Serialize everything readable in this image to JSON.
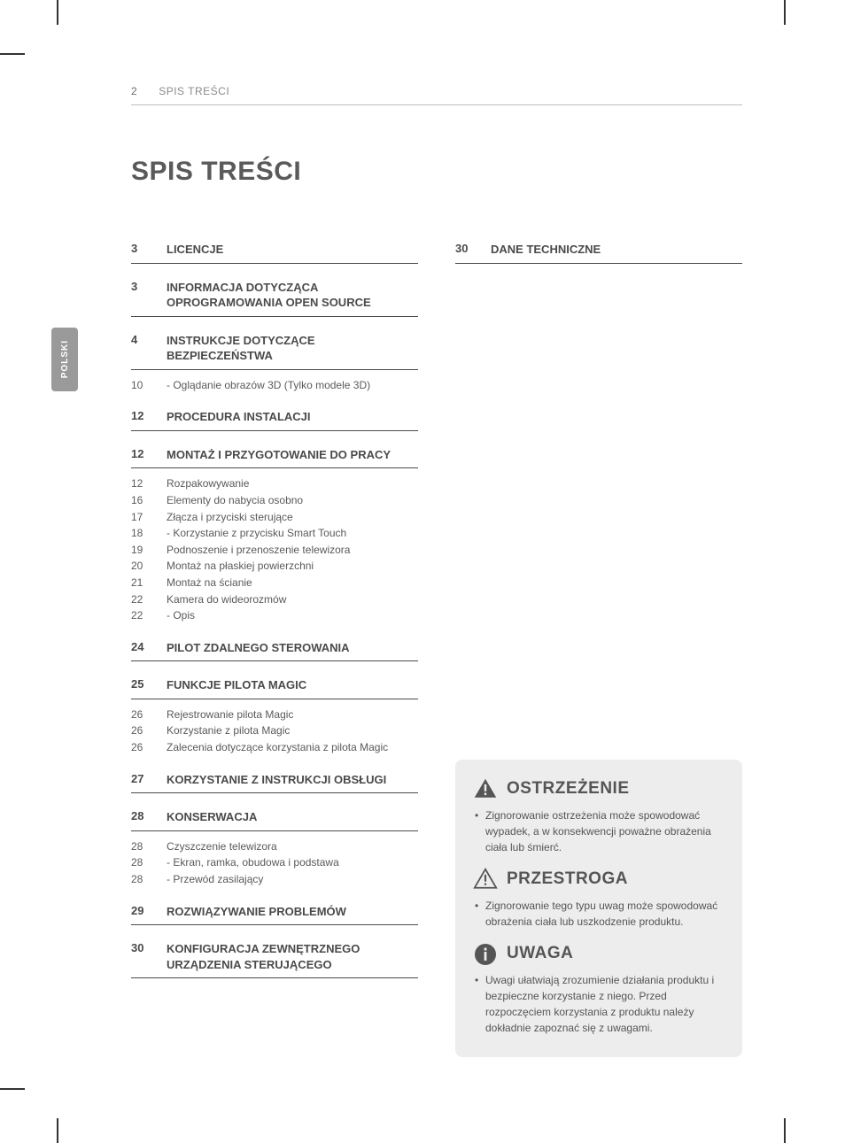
{
  "header": {
    "page_number": "2",
    "running_title": "SPIS TREŚCI"
  },
  "lang_tab": "POLSKI",
  "title": "SPIS TREŚCI",
  "left_col": [
    {
      "type": "section",
      "page": "3",
      "title": "LICENCJE"
    },
    {
      "type": "section",
      "page": "3",
      "title": "INFORMACJA DOTYCZĄCA OPROGRAMOWANIA OPEN SOURCE"
    },
    {
      "type": "section",
      "page": "4",
      "title": "INSTRUKCJE DOTYCZĄCE BEZPIECZEŃSTWA"
    },
    {
      "type": "item",
      "page": "10",
      "title": " - Oglądanie obrazów 3D (Tylko modele 3D)"
    },
    {
      "type": "section",
      "page": "12",
      "title": "PROCEDURA INSTALACJI"
    },
    {
      "type": "section",
      "page": "12",
      "title": "MONTAŻ I PRZYGOTOWANIE DO PRACY"
    },
    {
      "type": "item",
      "page": "12",
      "title": "Rozpakowywanie"
    },
    {
      "type": "item",
      "page": "16",
      "title": "Elementy do nabycia osobno"
    },
    {
      "type": "item",
      "page": "17",
      "title": "Złącza i przyciski sterujące"
    },
    {
      "type": "item",
      "page": "18",
      "title": " - Korzystanie z przycisku Smart Touch"
    },
    {
      "type": "item",
      "page": "19",
      "title": "Podnoszenie i przenoszenie telewizora"
    },
    {
      "type": "item",
      "page": "20",
      "title": "Montaż na płaskiej powierzchni"
    },
    {
      "type": "item",
      "page": "21",
      "title": "Montaż na ścianie"
    },
    {
      "type": "item",
      "page": "22",
      "title": "Kamera do wideorozmów"
    },
    {
      "type": "item",
      "page": "22",
      "title": " - Opis"
    },
    {
      "type": "section",
      "page": "24",
      "title": "PILOT ZDALNEGO STEROWANIA"
    },
    {
      "type": "section",
      "page": "25",
      "title": "FUNKCJE PILOTA MAGIC"
    },
    {
      "type": "item",
      "page": "26",
      "title": "Rejestrowanie pilota Magic"
    },
    {
      "type": "item",
      "page": "26",
      "title": "Korzystanie z pilota Magic"
    },
    {
      "type": "item",
      "page": "26",
      "title": "Zalecenia dotyczące korzystania z pilota Magic"
    },
    {
      "type": "section",
      "page": "27",
      "title": "KORZYSTANIE Z INSTRUKCJI OBSŁUGI"
    },
    {
      "type": "section",
      "page": "28",
      "title": "KONSERWACJA"
    },
    {
      "type": "item",
      "page": "28",
      "title": "Czyszczenie telewizora"
    },
    {
      "type": "item",
      "page": "28",
      "title": " - Ekran, ramka, obudowa i podstawa"
    },
    {
      "type": "item",
      "page": "28",
      "title": " - Przewód zasilający"
    },
    {
      "type": "section",
      "page": "29",
      "title": "ROZWIĄZYWANIE PROBLEMÓW"
    },
    {
      "type": "section",
      "page": "30",
      "title": "KONFIGURACJA ZEWNĘTRZNEGO URZĄDZENIA STERUJĄCEGO"
    }
  ],
  "right_col": [
    {
      "type": "section",
      "page": "30",
      "title": "DANE TECHNICZNE"
    }
  ],
  "notices": {
    "warning": {
      "title": "OSTRZEŻENIE",
      "body": "Zignorowanie ostrzeżenia może spowodować wypadek, a w konsekwencji poważne obrażenia ciała lub śmierć."
    },
    "caution": {
      "title": "PRZESTROGA",
      "body": "Zignorowanie tego typu uwag może spowodować obrażenia ciała lub uszkodzenie produktu."
    },
    "note": {
      "title": "UWAGA",
      "body": "Uwagi ułatwiają zrozumienie działania produktu i bezpieczne korzystanie z niego. Przed rozpoczęciem korzystania z produktu należy dokładnie zapoznać się z uwagami."
    }
  },
  "colors": {
    "text": "#4a4a4a",
    "muted": "#8a8a8a",
    "rule": "#4a4a4a",
    "tab_bg": "#9a9a9a",
    "box_bg": "#ededed"
  }
}
